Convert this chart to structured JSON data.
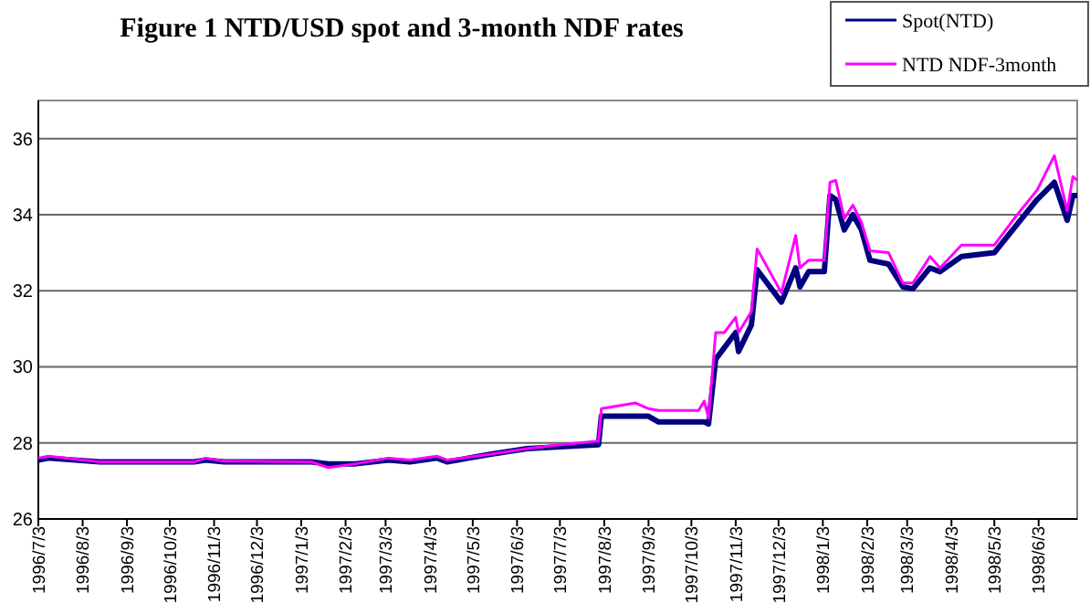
{
  "chart_data": {
    "type": "line",
    "title": "Figure 1  NTD/USD spot and 3-month NDF rates",
    "x": [
      "1996-07-03",
      "1996-07-10",
      "1996-08-15",
      "1996-10-20",
      "1996-10-28",
      "1996-11-10",
      "1997-01-10",
      "1997-01-22",
      "1997-02-10",
      "1997-03-05",
      "1997-03-20",
      "1997-04-08",
      "1997-04-15",
      "1997-05-15",
      "1997-06-10",
      "1997-07-03",
      "1997-07-30",
      "1997-08-01",
      "1997-08-25",
      "1997-09-03",
      "1997-09-10",
      "1997-10-08",
      "1997-10-12",
      "1997-10-15",
      "1997-10-20",
      "1997-10-26",
      "1997-11-03",
      "1997-11-05",
      "1997-11-14",
      "1997-11-18",
      "1997-12-05",
      "1997-12-15",
      "1997-12-18",
      "1997-12-24",
      "1998-01-04",
      "1998-01-08",
      "1998-01-12",
      "1998-01-18",
      "1998-01-24",
      "1998-01-30",
      "1998-02-05",
      "1998-02-18",
      "1998-02-28",
      "1998-03-07",
      "1998-03-19",
      "1998-03-26",
      "1998-04-10",
      "1998-05-03",
      "1998-05-18",
      "1998-06-02",
      "1998-06-14",
      "1998-06-23",
      "1998-06-27",
      "1998-06-30"
    ],
    "series": [
      {
        "name": "Spot(NTD)",
        "color": "#000080",
        "values": [
          27.55,
          27.6,
          27.5,
          27.5,
          27.55,
          27.5,
          27.5,
          27.45,
          27.45,
          27.55,
          27.5,
          27.6,
          27.5,
          27.7,
          27.85,
          27.9,
          27.95,
          28.7,
          28.7,
          28.7,
          28.55,
          28.55,
          28.55,
          28.5,
          30.2,
          30.5,
          30.9,
          30.4,
          31.1,
          32.55,
          31.7,
          32.6,
          32.1,
          32.5,
          32.5,
          34.5,
          34.4,
          33.6,
          34.0,
          33.6,
          32.8,
          32.7,
          32.1,
          32.05,
          32.6,
          32.5,
          32.9,
          33.0,
          33.7,
          34.4,
          34.85,
          33.85,
          34.5,
          34.5
        ]
      },
      {
        "name": "NTD NDF-3month",
        "color": "#ff00ff",
        "values": [
          27.6,
          27.65,
          27.5,
          27.5,
          27.6,
          27.52,
          27.5,
          27.35,
          27.45,
          27.6,
          27.55,
          27.65,
          27.55,
          27.7,
          27.85,
          27.95,
          28.05,
          28.9,
          29.05,
          28.9,
          28.85,
          28.85,
          29.1,
          28.65,
          30.9,
          30.9,
          31.3,
          30.9,
          31.45,
          33.1,
          31.95,
          33.45,
          32.6,
          32.8,
          32.8,
          34.85,
          34.9,
          33.9,
          34.25,
          33.8,
          33.05,
          33.0,
          32.2,
          32.2,
          32.9,
          32.6,
          33.2,
          33.2,
          33.95,
          34.65,
          35.55,
          34.1,
          35.0,
          34.9
        ]
      }
    ],
    "xlim": [
      "1996-07-03",
      "1998-06-30"
    ],
    "xticks": [
      {
        "value": "1996-07-03",
        "label": "1996/7/3"
      },
      {
        "value": "1996-08-03",
        "label": "1996/8/3"
      },
      {
        "value": "1996-09-03",
        "label": "1996/9/3"
      },
      {
        "value": "1996-10-03",
        "label": "1996/10/3"
      },
      {
        "value": "1996-11-03",
        "label": "1996/11/3"
      },
      {
        "value": "1996-12-03",
        "label": "1996/12/3"
      },
      {
        "value": "1997-01-03",
        "label": "1997/1/3"
      },
      {
        "value": "1997-02-03",
        "label": "1997/2/3"
      },
      {
        "value": "1997-03-03",
        "label": "1997/3/3"
      },
      {
        "value": "1997-04-03",
        "label": "1997/4/3"
      },
      {
        "value": "1997-05-03",
        "label": "1997/5/3"
      },
      {
        "value": "1997-06-03",
        "label": "1997/6/3"
      },
      {
        "value": "1997-07-03",
        "label": "1997/7/3"
      },
      {
        "value": "1997-08-03",
        "label": "1997/8/3"
      },
      {
        "value": "1997-09-03",
        "label": "1997/9/3"
      },
      {
        "value": "1997-10-03",
        "label": "1997/10/3"
      },
      {
        "value": "1997-11-03",
        "label": "1997/11/3"
      },
      {
        "value": "1997-12-03",
        "label": "1997/12/3"
      },
      {
        "value": "1998-01-03",
        "label": "1998/1/3"
      },
      {
        "value": "1998-02-03",
        "label": "1998/2/3"
      },
      {
        "value": "1998-03-03",
        "label": "1998/3/3"
      },
      {
        "value": "1998-04-03",
        "label": "1998/4/3"
      },
      {
        "value": "1998-05-03",
        "label": "1998/5/3"
      },
      {
        "value": "1998-06-03",
        "label": "1998/6/3"
      }
    ],
    "ylim": [
      26,
      37
    ],
    "yticks": [
      26,
      28,
      30,
      32,
      34,
      36
    ],
    "grid": "y",
    "legend": "top right",
    "marker": "none",
    "line_style": "solid"
  }
}
